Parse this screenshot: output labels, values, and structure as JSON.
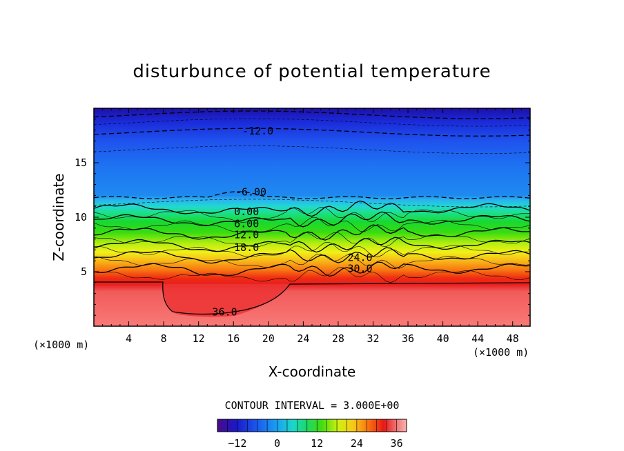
{
  "chart_data": {
    "type": "heatmap",
    "title": "disturbunce of potential temperature",
    "xlabel": "X-coordinate",
    "ylabel": "Z-coordinate",
    "x_unit": "(×1000 m)",
    "xlim": [
      0,
      50
    ],
    "ylim": [
      0,
      20
    ],
    "x_ticks": [
      4,
      8,
      12,
      16,
      20,
      24,
      28,
      32,
      36,
      40,
      44,
      48
    ],
    "y_ticks": [
      5,
      10,
      15
    ],
    "contour_interval_text": "CONTOUR INTERVAL = 3.000E+00",
    "contour_interval": 3.0,
    "colorbar": {
      "range": [
        -18,
        39
      ],
      "ticks": [
        -12,
        0,
        12,
        24,
        36
      ]
    },
    "levels_z": {
      "-18": 19.4,
      "-15": 18.7,
      "-12": 17.8,
      "-9": 16.2,
      "-6": 11.8,
      "-3": 11.3,
      "0": 10.8,
      "3": 10.3,
      "6": 9.8,
      "9": 9.3,
      "12": 8.6,
      "15": 8.0,
      "18": 7.5,
      "21": 7.0,
      "24": 6.5,
      "27": 6.0,
      "30": 5.3,
      "33": 4.7
    },
    "contour_labels": [
      {
        "text": "-12.0",
        "x": 18.8,
        "z": 17.9
      },
      {
        "text": "-6.00",
        "x": 18.0,
        "z": 12.3
      },
      {
        "text": "0.00",
        "x": 17.5,
        "z": 10.5
      },
      {
        "text": "6.00",
        "x": 17.5,
        "z": 9.4
      },
      {
        "text": "12.0",
        "x": 17.5,
        "z": 8.4
      },
      {
        "text": "18.0",
        "x": 17.5,
        "z": 7.2
      },
      {
        "text": "24.0",
        "x": 30.5,
        "z": 6.3
      },
      {
        "text": "30.0",
        "x": 30.5,
        "z": 5.3
      },
      {
        "text": "36.0",
        "x": 15.0,
        "z": 1.3
      }
    ]
  }
}
